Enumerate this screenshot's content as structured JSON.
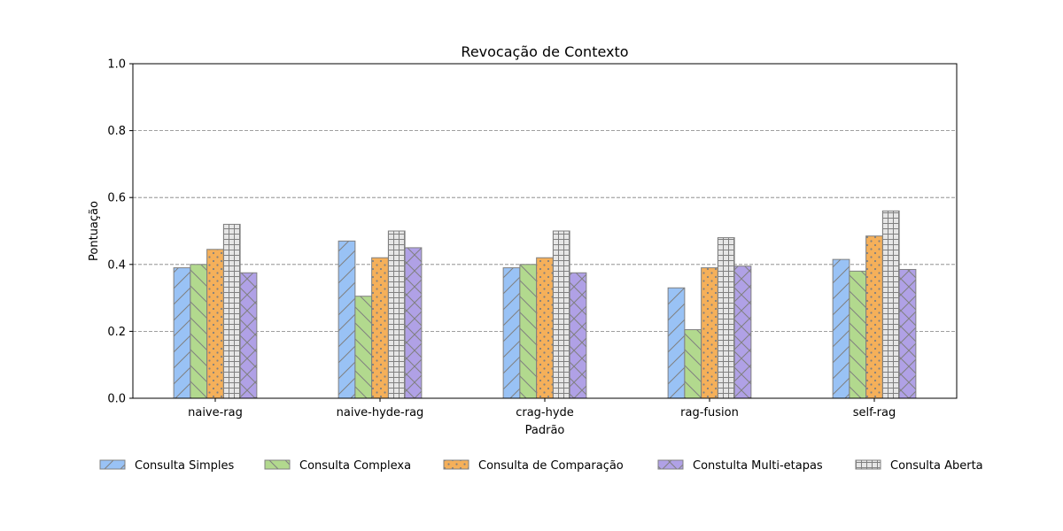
{
  "chart_data": {
    "type": "bar",
    "title": "Revocação de Contexto",
    "xlabel": "Padrão",
    "ylabel": "Pontuação",
    "ylim": [
      0,
      1.0
    ],
    "yticks": [
      "0.0",
      "0.2",
      "0.4",
      "0.6",
      "0.8",
      "1.0"
    ],
    "grid": "horizontal-dashed",
    "legend_position": "bottom",
    "categories": [
      "naive-rag",
      "naive-hyde-rag",
      "crag-hyde",
      "rag-fusion",
      "self-rag"
    ],
    "series": [
      {
        "name": "Consulta Simples",
        "color": "#99c2f5",
        "hatch": "diagonal",
        "values": [
          0.39,
          0.47,
          0.39,
          0.33,
          0.415
        ]
      },
      {
        "name": "Consulta Complexa",
        "color": "#b2d98e",
        "hatch": "back-diagonal",
        "values": [
          0.4,
          0.305,
          0.4,
          0.205,
          0.38
        ]
      },
      {
        "name": "Consulta de Comparação",
        "color": "#f5b05a",
        "hatch": "dots",
        "values": [
          0.445,
          0.42,
          0.42,
          0.39,
          0.485
        ]
      },
      {
        "name": "Constulta Multi-etapas",
        "color": "#b0a1e6",
        "hatch": "cross",
        "values": [
          0.375,
          0.45,
          0.375,
          0.395,
          0.385
        ]
      },
      {
        "name": "Consulta Aberta",
        "color": "#e6e6e6",
        "hatch": "grid",
        "values": [
          0.52,
          0.5,
          0.5,
          0.48,
          0.56
        ]
      }
    ],
    "bar_order": [
      0,
      1,
      2,
      4,
      3
    ],
    "edge_color": "#808080"
  }
}
